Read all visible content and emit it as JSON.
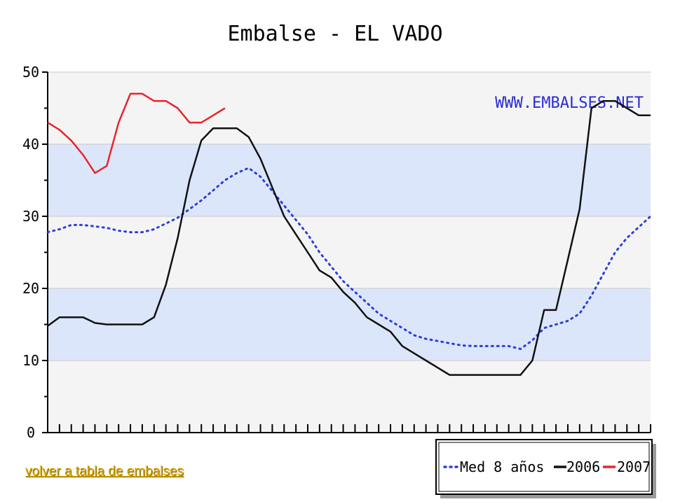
{
  "chart_data": {
    "type": "line",
    "title": "Embalse - EL VADO",
    "watermark": "WWW.EMBALSES.NET",
    "ylim": [
      0,
      50
    ],
    "yticks": [
      "0",
      "10",
      "20",
      "30",
      "40",
      "50"
    ],
    "x_periods": 52,
    "grid": true,
    "band_colors": [
      "#f4f4f4",
      "#dce6fb"
    ],
    "legend_position": "bottom-right",
    "series": [
      {
        "name": "Med 8 años",
        "color": "#2b3fd6",
        "style": "dotted",
        "values": [
          27.8,
          28.2,
          28.8,
          28.8,
          28.6,
          28.4,
          28.0,
          27.8,
          27.8,
          28.2,
          29.0,
          29.8,
          31.0,
          32.2,
          33.6,
          35.0,
          36.0,
          36.7,
          35.5,
          33.5,
          31.5,
          29.5,
          27.5,
          25.0,
          23.0,
          21.0,
          19.5,
          18.0,
          16.5,
          15.5,
          14.5,
          13.5,
          13.0,
          12.7,
          12.4,
          12.1,
          12.0,
          12.0,
          12.0,
          12.0,
          11.6,
          12.8,
          14.5,
          15.0,
          15.5,
          16.5,
          19.0,
          22.0,
          25.0,
          27.0,
          28.5,
          30.0
        ]
      },
      {
        "name": "2006",
        "color": "#111111",
        "style": "solid",
        "values": [
          14.8,
          16.0,
          16.0,
          16.0,
          15.2,
          15.0,
          15.0,
          15.0,
          15.0,
          16.0,
          20.5,
          27.0,
          35.0,
          40.5,
          42.2,
          42.2,
          42.2,
          41.0,
          38.0,
          34.0,
          30.0,
          27.5,
          25.0,
          22.5,
          21.5,
          19.5,
          18.0,
          16.0,
          15.0,
          14.0,
          12.0,
          11.0,
          10.0,
          9.0,
          8.0,
          8.0,
          8.0,
          8.0,
          8.0,
          8.0,
          8.0,
          10.0,
          17.0,
          17.0,
          24.0,
          31.0,
          45.0,
          46.0,
          46.0,
          45.0,
          44.0,
          44.0
        ]
      },
      {
        "name": "2007",
        "color": "#e8262a",
        "style": "solid",
        "values": [
          43.0,
          42.0,
          40.5,
          38.5,
          36.0,
          37.0,
          43.0,
          47.0,
          47.0,
          46.0,
          46.0,
          45.0,
          43.0,
          43.0,
          44.0,
          45.0
        ]
      }
    ]
  },
  "footer": {
    "back_link": "volver a tabla de embalses"
  }
}
